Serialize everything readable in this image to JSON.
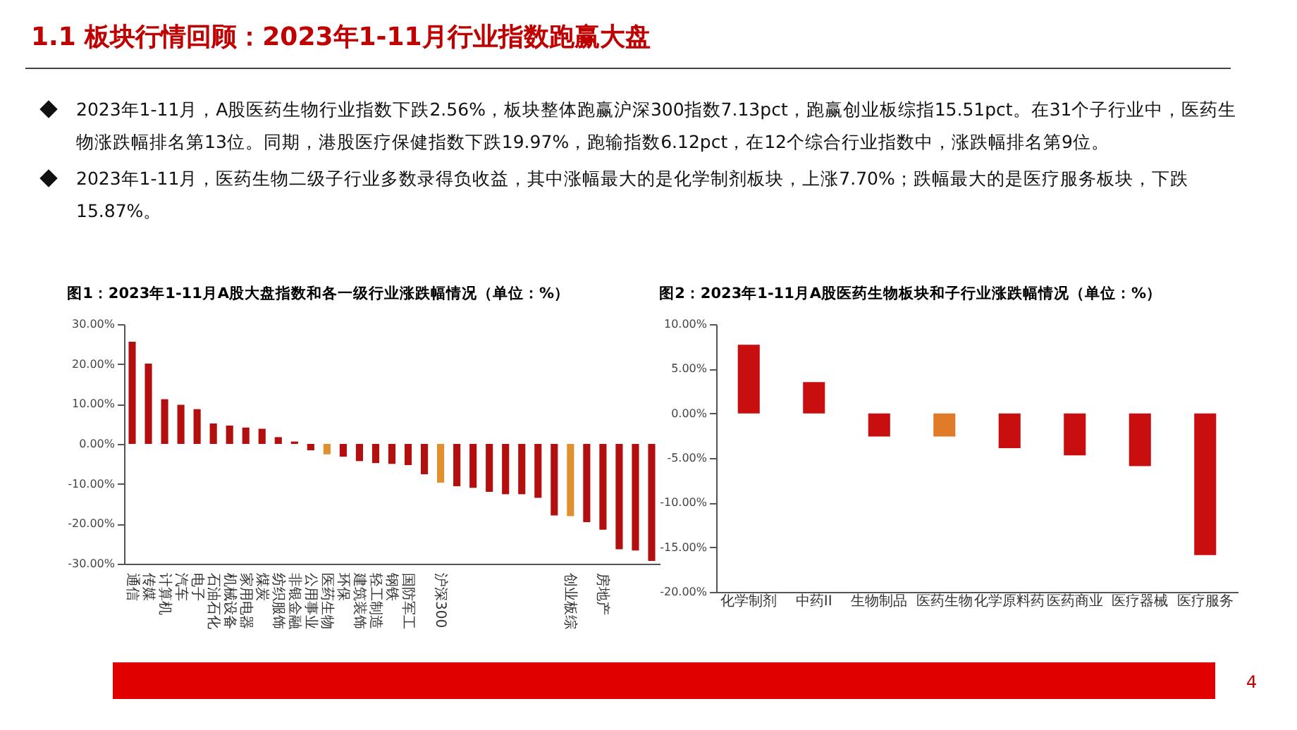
{
  "chart_data": [
    {
      "type": "other",
      "title": "1.1 板块行情回顾：2023年1-11月行业指数跑赢大盘",
      "annotations": [
        "2023年1-11月，A股医药生物行业指数下跌2.56%，板块整体跑赢沪深300指数7.13pct，跑赢创业板综指15.51pct。在31个子行业中，医药生物涨跌幅排名第13位。同期，港股医疗保健指数下跌19.97%，跑输指数6.12pct，在12个综合行业指数中，涨跌幅排名第9位。",
        "2023年1-11月，医药生物二级子行业多数录得负收益，其中涨幅最大的是化学制剂板块，上涨7.70%；跌幅最大的是医疗服务板块，下跌15.87%。",
        "4"
      ]
    },
    {
      "type": "bar",
      "title": "图1：2023年1-11月A股大盘指数和各一级行业涨跌幅情况（单位：%）",
      "categories": [
        "通信",
        "传媒",
        "计算机",
        "汽车",
        "电子",
        "石油石化",
        "机械设备",
        "家用电器",
        "煤炭",
        "纺织服饰",
        "非银金融",
        "公用事业",
        "医药生物",
        "环保",
        "建筑装饰",
        "轻工制造",
        "钢铁",
        "国防军工",
        null,
        "沪深300",
        null,
        null,
        null,
        null,
        null,
        null,
        null,
        "创业板综",
        null,
        "房地产",
        null,
        null,
        null
      ],
      "values": [
        25.6,
        20.1,
        11.2,
        9.8,
        8.7,
        5.1,
        4.6,
        4.1,
        3.8,
        1.7,
        0.6,
        -1.6,
        -2.6,
        -3.2,
        -4.3,
        -4.8,
        -5.0,
        -5.3,
        -7.6,
        -9.7,
        -10.6,
        -11.0,
        -12.0,
        -12.6,
        -12.6,
        -13.5,
        -17.9,
        -18.1,
        -19.6,
        -21.5,
        -26.4,
        -26.7,
        -29.3
      ],
      "colors": [
        "#b40f0f",
        "#b40f0f",
        "#b40f0f",
        "#b40f0f",
        "#b40f0f",
        "#b40f0f",
        "#b40f0f",
        "#b40f0f",
        "#b40f0f",
        "#b40f0f",
        "#b40f0f",
        "#b40f0f",
        "#e0902e",
        "#b40f0f",
        "#b40f0f",
        "#b40f0f",
        "#b40f0f",
        "#b40f0f",
        "#b40f0f",
        "#e0902e",
        "#b40f0f",
        "#b40f0f",
        "#b40f0f",
        "#b40f0f",
        "#b40f0f",
        "#b40f0f",
        "#b40f0f",
        "#e0902e",
        "#b40f0f",
        "#b40f0f",
        "#b40f0f",
        "#b40f0f",
        "#b40f0f"
      ],
      "ylim": [
        -30,
        30
      ],
      "yticks": [
        {
          "value": 30,
          "label": "30.00%"
        },
        {
          "value": 20,
          "label": "20.00%"
        },
        {
          "value": 10,
          "label": "10.00%"
        },
        {
          "value": 0,
          "label": "0.00%"
        },
        {
          "value": -10,
          "label": "-10.00%"
        },
        {
          "value": -20,
          "label": "-20.00%"
        },
        {
          "value": -30,
          "label": "-30.00%"
        }
      ]
    },
    {
      "type": "bar",
      "title": "图2：2023年1-11月A股医药生物板块和子行业涨跌幅情况（单位：%）",
      "categories": [
        "化学制剂",
        "中药II",
        "生物制品",
        "医药生物",
        "化学原料药",
        "医药商业",
        "医疗器械",
        "医疗服务"
      ],
      "values": [
        7.7,
        3.5,
        -2.6,
        -2.6,
        -3.9,
        -4.7,
        -5.9,
        -15.87
      ],
      "colors": [
        "#c80e0e",
        "#c80e0e",
        "#c80e0e",
        "#e07b2a",
        "#c80e0e",
        "#c80e0e",
        "#c80e0e",
        "#c80e0e"
      ],
      "ylim": [
        -20,
        10
      ],
      "yticks": [
        {
          "value": 10,
          "label": "10.00%"
        },
        {
          "value": 5,
          "label": "5.00%"
        },
        {
          "value": 0,
          "label": "0.00%"
        },
        {
          "value": -5,
          "label": "-5.00%"
        },
        {
          "value": -10,
          "label": "-10.00%"
        },
        {
          "value": -15,
          "label": "-15.00%"
        },
        {
          "value": -20,
          "label": "-20.00%"
        }
      ]
    }
  ]
}
